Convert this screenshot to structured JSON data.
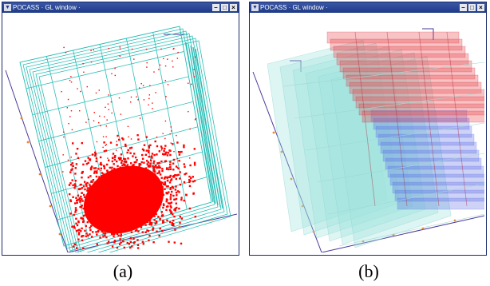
{
  "windows": [
    {
      "title": "POCASS · GL window ·",
      "caption": "(a)",
      "controls": [
        "minimize",
        "maximize",
        "close"
      ]
    },
    {
      "title": "POCASS · GL window ·",
      "caption": "(b)",
      "controls": [
        "minimize",
        "maximize",
        "close"
      ]
    }
  ],
  "icons": {
    "menu": "chevron-down-icon",
    "minimize": "minimize-icon",
    "maximize": "maximize-icon",
    "close": "close-icon"
  },
  "colors": {
    "titlebar": "#2a4696",
    "grid": "#2bbfb8",
    "points": "#ff0000",
    "cube_red": "#e8434a",
    "cube_blue": "#4a5ee0",
    "cube_cyan": "#9fe3de",
    "axis": "#4b3a9a",
    "axis_tick": "#f08020"
  }
}
